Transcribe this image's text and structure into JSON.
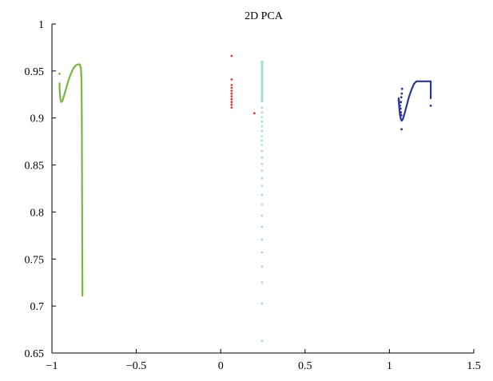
{
  "chart_data": {
    "type": "scatter",
    "title": "2D PCA",
    "xlabel": "",
    "ylabel": "",
    "xlim": [
      -1,
      1.5
    ],
    "ylim": [
      0.65,
      1
    ],
    "x_ticks": [
      -1,
      -0.5,
      0,
      0.5,
      1,
      1.5
    ],
    "x_tick_labels": [
      "−1",
      "−0.5",
      "0",
      "0.5",
      "1",
      "1.5"
    ],
    "y_ticks": [
      0.65,
      0.7,
      0.75,
      0.8,
      0.85,
      0.9,
      0.95,
      1
    ],
    "y_tick_labels": [
      "0.65",
      "0.7",
      "0.75",
      "0.8",
      "0.85",
      "0.9",
      "0.95",
      "1"
    ],
    "grid": false,
    "legend": "none",
    "series": [
      {
        "color": "#7cb342",
        "mode": "line",
        "points": [
          [
            -0.955,
            0.937
          ],
          [
            -0.954,
            0.928
          ],
          [
            -0.95,
            0.92
          ],
          [
            -0.945,
            0.917
          ],
          [
            -0.938,
            0.918
          ],
          [
            -0.928,
            0.924
          ],
          [
            -0.915,
            0.932
          ],
          [
            -0.902,
            0.94
          ],
          [
            -0.888,
            0.947
          ],
          [
            -0.872,
            0.953
          ],
          [
            -0.858,
            0.956
          ],
          [
            -0.845,
            0.957
          ],
          [
            -0.835,
            0.957
          ],
          [
            -0.828,
            0.953
          ],
          [
            -0.825,
            0.94
          ],
          [
            -0.823,
            0.9
          ],
          [
            -0.822,
            0.85
          ],
          [
            -0.821,
            0.8
          ],
          [
            -0.82,
            0.75
          ],
          [
            -0.819,
            0.711
          ]
        ],
        "markers": [
          [
            -0.955,
            0.947
          ]
        ]
      },
      {
        "color": "#e53935",
        "mode": "points",
        "points": [
          [
            0.065,
            0.966
          ],
          [
            0.065,
            0.941
          ],
          [
            0.065,
            0.935
          ],
          [
            0.065,
            0.932
          ],
          [
            0.065,
            0.929
          ],
          [
            0.065,
            0.926
          ],
          [
            0.065,
            0.923
          ],
          [
            0.065,
            0.92
          ],
          [
            0.065,
            0.917
          ],
          [
            0.065,
            0.914
          ],
          [
            0.065,
            0.911
          ],
          [
            0.2,
            0.905
          ]
        ]
      },
      {
        "color": "#a6dcdc",
        "mode": "segment+points",
        "segment": [
          [
            0.245,
            0.917
          ],
          [
            0.245,
            0.961
          ]
        ],
        "points": [
          [
            0.245,
            0.911
          ],
          [
            0.245,
            0.906
          ],
          [
            0.245,
            0.901
          ],
          [
            0.245,
            0.896
          ],
          [
            0.245,
            0.891
          ],
          [
            0.245,
            0.886
          ],
          [
            0.245,
            0.881
          ],
          [
            0.245,
            0.876
          ],
          [
            0.245,
            0.871
          ],
          [
            0.245,
            0.865
          ],
          [
            0.245,
            0.858
          ],
          [
            0.245,
            0.851
          ],
          [
            0.245,
            0.844
          ],
          [
            0.245,
            0.836
          ],
          [
            0.245,
            0.828
          ],
          [
            0.245,
            0.818
          ],
          [
            0.245,
            0.808
          ],
          [
            0.245,
            0.796
          ],
          [
            0.245,
            0.784
          ],
          [
            0.245,
            0.771
          ],
          [
            0.245,
            0.757
          ],
          [
            0.245,
            0.742
          ],
          [
            0.245,
            0.725
          ],
          [
            0.245,
            0.703
          ],
          [
            0.245,
            0.663
          ]
        ]
      },
      {
        "color": "#283593",
        "mode": "line",
        "points": [
          [
            1.055,
            0.921
          ],
          [
            1.058,
            0.912
          ],
          [
            1.062,
            0.904
          ],
          [
            1.067,
            0.899
          ],
          [
            1.073,
            0.897
          ],
          [
            1.08,
            0.899
          ],
          [
            1.09,
            0.905
          ],
          [
            1.102,
            0.913
          ],
          [
            1.115,
            0.922
          ],
          [
            1.13,
            0.93
          ],
          [
            1.145,
            0.936
          ],
          [
            1.16,
            0.939
          ],
          [
            1.185,
            0.939
          ],
          [
            1.21,
            0.939
          ],
          [
            1.235,
            0.939
          ],
          [
            1.245,
            0.939
          ],
          [
            1.245,
            0.93
          ],
          [
            1.245,
            0.921
          ]
        ],
        "markers": [
          [
            1.055,
            0.919
          ],
          [
            1.058,
            0.916
          ],
          [
            1.062,
            0.913
          ],
          [
            1.066,
            0.91
          ],
          [
            1.068,
            0.906
          ],
          [
            1.07,
            0.903
          ],
          [
            1.075,
            0.931
          ],
          [
            1.073,
            0.926
          ],
          [
            1.07,
            0.922
          ],
          [
            1.068,
            0.917
          ],
          [
            1.072,
            0.888
          ],
          [
            1.245,
            0.913
          ]
        ]
      }
    ]
  }
}
